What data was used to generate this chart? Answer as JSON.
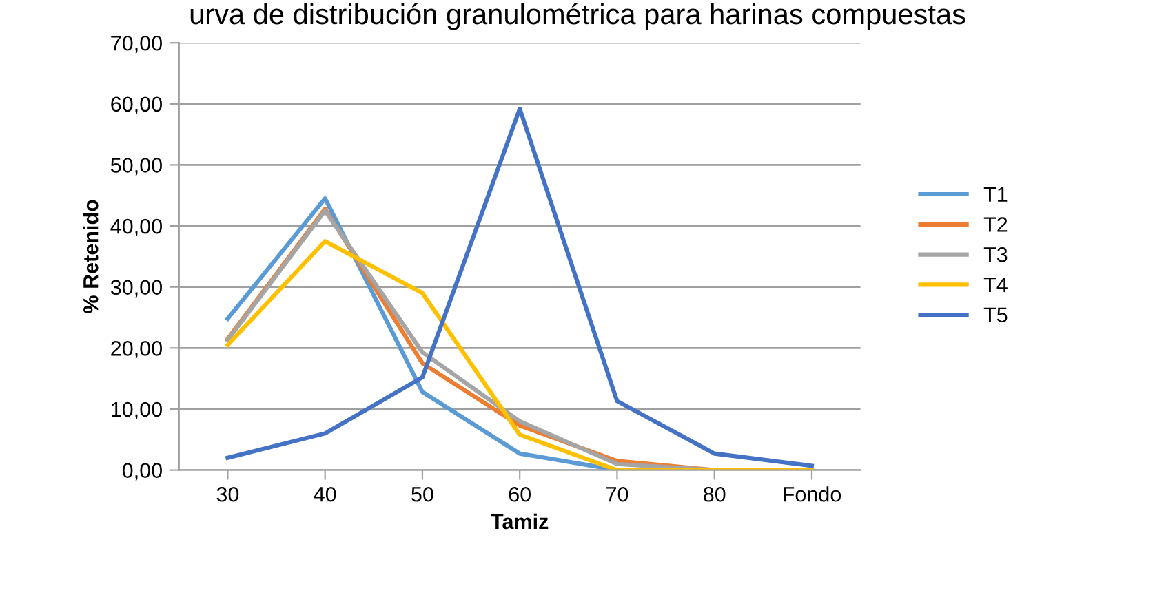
{
  "chart_data": {
    "type": "line",
    "title": "urva de distribución granulométrica para harinas compuestas",
    "xlabel": "Tamiz",
    "ylabel": "% Retenido",
    "categories": [
      "30",
      "40",
      "50",
      "60",
      "70",
      "80",
      "Fondo"
    ],
    "series": [
      {
        "name": "T1",
        "color": "#5b9bd5",
        "values": [
          24.8,
          44.5,
          12.8,
          2.7,
          0,
          0,
          0
        ]
      },
      {
        "name": "T2",
        "color": "#ed7d31",
        "values": [
          21.5,
          42.8,
          17.5,
          7.3,
          1.5,
          0,
          0
        ]
      },
      {
        "name": "T3",
        "color": "#a5a5a5",
        "values": [
          21.3,
          42.5,
          19.3,
          8.0,
          1.0,
          0,
          0
        ]
      },
      {
        "name": "T4",
        "color": "#ffc000",
        "values": [
          20.5,
          37.5,
          29.0,
          5.8,
          0,
          0,
          0
        ]
      },
      {
        "name": "T5",
        "color": "#4472c4",
        "values": [
          2.0,
          6.0,
          15.2,
          59.2,
          11.3,
          2.7,
          0.7
        ]
      }
    ],
    "ylim": [
      0,
      70
    ],
    "yticks": [
      {
        "value": 0,
        "label": "0,00"
      },
      {
        "value": 10,
        "label": "10,00"
      },
      {
        "value": 20,
        "label": "20,00"
      },
      {
        "value": 30,
        "label": "30,00"
      },
      {
        "value": 40,
        "label": "40,00"
      },
      {
        "value": 50,
        "label": "50,00"
      },
      {
        "value": 60,
        "label": "60,00"
      },
      {
        "value": 70,
        "label": "70,00"
      }
    ],
    "grid": "y",
    "legend": "right",
    "marker": "none",
    "line_style": "solid"
  }
}
